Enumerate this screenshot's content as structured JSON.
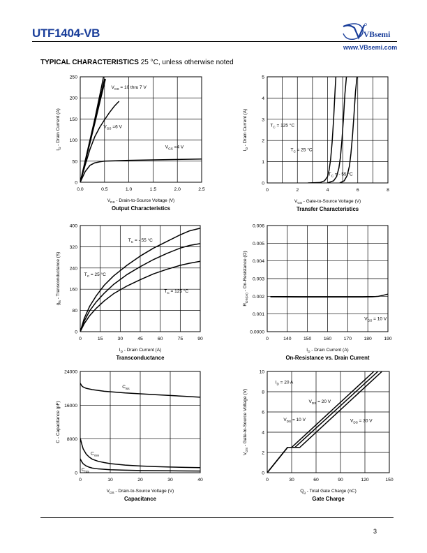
{
  "header": {
    "part_number": "UTF1404-VB",
    "brand": "VBsemi",
    "website": "www.VBsemi.com"
  },
  "section": {
    "title_bold": "TYPICAL CHARACTERISTICS",
    "title_rest": " 25 °C, unless otherwise noted"
  },
  "footer": {
    "page_number": "3"
  },
  "colors": {
    "brand": "#1a3e9a",
    "line": "#000000",
    "grid": "#000000"
  },
  "chart_data": [
    {
      "id": "output",
      "type": "line",
      "title": "Output Characteristics",
      "xlabel": "V_DS - Drain-to-Source Voltage (V)",
      "ylabel": "I_D - Drain Current (A)",
      "xlim": [
        0,
        2.5
      ],
      "ylim": [
        0,
        250
      ],
      "xticks": [
        "0.0",
        "0.5",
        "1.0",
        "1.5",
        "2.0",
        "2.5"
      ],
      "yticks": [
        "0",
        "50",
        "100",
        "150",
        "200",
        "250"
      ],
      "xgrid": 5,
      "ygrid": 5,
      "series": [
        {
          "x": [
            0,
            0.1,
            0.2,
            0.3,
            0.4,
            0.48
          ],
          "y": [
            0,
            50,
            100,
            150,
            205,
            250
          ]
        },
        {
          "x": [
            0,
            0.1,
            0.2,
            0.3,
            0.4,
            0.5
          ],
          "y": [
            0,
            48,
            96,
            145,
            195,
            245
          ]
        },
        {
          "x": [
            0,
            0.1,
            0.2,
            0.3,
            0.4,
            0.52
          ],
          "y": [
            0,
            46,
            93,
            140,
            188,
            245
          ]
        },
        {
          "x": [
            0,
            0.1,
            0.2,
            0.3,
            0.4,
            0.5,
            0.6,
            0.7,
            0.8
          ],
          "y": [
            0,
            40,
            78,
            108,
            130,
            148,
            165,
            180,
            192
          ]
        },
        {
          "x": [
            0,
            0.1,
            0.2,
            0.3,
            0.4,
            0.5,
            1.0,
            1.5,
            2.0,
            2.5
          ],
          "y": [
            0,
            25,
            40,
            46,
            48.5,
            50,
            52,
            53,
            54,
            55
          ]
        }
      ],
      "annotations": [
        {
          "text": "V",
          "sub": "GS",
          "rest": " = 10 thru 7 V",
          "x": 0.64,
          "y": 222
        },
        {
          "text": "V",
          "sub": "GS",
          "rest": " =6 V",
          "x": 0.48,
          "y": 128
        },
        {
          "text": "V",
          "sub": "GS",
          "rest": " =4 V",
          "x": 1.75,
          "y": 80
        }
      ]
    },
    {
      "id": "transfer",
      "type": "line",
      "title": "Transfer Characteristics",
      "xlabel": "V_GS - Gate-to-Source Voltage (V)",
      "ylabel": "I_D - Drain Current (A)",
      "xlim": [
        0,
        8
      ],
      "ylim": [
        0,
        5
      ],
      "xticks": [
        "0",
        "2",
        "4",
        "6",
        "8"
      ],
      "yticks": [
        "0",
        "1",
        "2",
        "3",
        "4",
        "5"
      ],
      "xgrid": 8,
      "ygrid": 5,
      "series": [
        {
          "name": "T_C = 125 °C",
          "x": [
            2.7,
            3.5,
            3.8,
            4.0,
            4.1,
            4.2,
            4.3,
            4.4,
            4.5,
            4.55
          ],
          "y": [
            0,
            0.02,
            0.1,
            0.3,
            0.6,
            1.1,
            1.9,
            3.0,
            4.4,
            5
          ]
        },
        {
          "name": "T_C = 25 °C",
          "x": [
            4.0,
            4.4,
            4.6,
            4.75,
            4.85,
            4.95,
            5.05,
            5.15,
            5.25
          ],
          "y": [
            0,
            0.1,
            0.3,
            0.7,
            1.2,
            2.0,
            3.0,
            4.2,
            5
          ]
        },
        {
          "name": "T_C = - 55 °C",
          "x": [
            4.8,
            5.1,
            5.3,
            5.45,
            5.55,
            5.65,
            5.75,
            5.85,
            5.95
          ],
          "y": [
            0,
            0.1,
            0.35,
            0.8,
            1.4,
            2.2,
            3.2,
            4.3,
            5
          ]
        }
      ],
      "annotations": [
        {
          "text": "T",
          "sub": "C",
          "rest": " = 125 °C",
          "x": 0.2,
          "y": 2.65
        },
        {
          "text": "T",
          "sub": "C",
          "rest": " = 25 °C",
          "x": 1.55,
          "y": 1.5
        },
        {
          "text": "T",
          "sub": "C",
          "rest": " = - 55 °C",
          "x": 4.05,
          "y": 0.35
        }
      ]
    },
    {
      "id": "transconductance",
      "type": "line",
      "title": "Transconductance",
      "xlabel": "I_D - Drain Current (A)",
      "ylabel": "g_fs - Transconductance (S)",
      "xlim": [
        0,
        90
      ],
      "ylim": [
        0,
        400
      ],
      "xticks": [
        "0",
        "15",
        "30",
        "45",
        "60",
        "75",
        "90"
      ],
      "yticks": [
        "0",
        "80",
        "160",
        "240",
        "320",
        "400"
      ],
      "xgrid": 6,
      "ygrid": 5,
      "series": [
        {
          "name": "T_C = - 55 °C",
          "x": [
            0,
            3,
            7,
            12,
            18,
            25,
            35,
            45,
            55,
            65,
            75,
            82,
            90
          ],
          "y": [
            0,
            50,
            95,
            135,
            175,
            210,
            250,
            285,
            315,
            340,
            365,
            380,
            390
          ]
        },
        {
          "name": "T_C = 25 °C",
          "x": [
            0,
            3,
            7,
            12,
            18,
            25,
            35,
            45,
            55,
            65,
            75,
            82,
            90
          ],
          "y": [
            0,
            40,
            78,
            112,
            145,
            178,
            215,
            245,
            272,
            295,
            315,
            325,
            332
          ]
        },
        {
          "name": "T_C = 125 °C",
          "x": [
            0,
            3,
            7,
            12,
            18,
            25,
            35,
            45,
            55,
            65,
            75,
            82,
            90
          ],
          "y": [
            0,
            30,
            60,
            88,
            116,
            143,
            172,
            196,
            218,
            235,
            250,
            258,
            265
          ]
        }
      ],
      "annotations": [
        {
          "text": "T",
          "sub": "C",
          "rest": " = - 55 °C",
          "x": 36,
          "y": 340
        },
        {
          "text": "T",
          "sub": "C",
          "rest": " = 25 °C",
          "x": 3,
          "y": 210
        },
        {
          "text": "T",
          "sub": "C",
          "rest": " = 125 °C",
          "x": 63,
          "y": 148
        }
      ]
    },
    {
      "id": "onres",
      "type": "line",
      "title": "On-Resistance vs. Drain Current",
      "xlabel": "I_D - Drain Current (A)",
      "ylabel": "R_DS(on) - On-Resistance (Ω)",
      "xlim": [
        0,
        190
      ],
      "ylim": [
        0,
        0.006
      ],
      "xticks": [
        "0",
        "140",
        "150",
        "160",
        "170",
        "180",
        "190"
      ],
      "yticks": [
        "0.0000",
        "0.001",
        "0.002",
        "0.003",
        "0.004",
        "0.005",
        "0.006"
      ],
      "xgrid": 6,
      "ygrid": 6,
      "series": [
        {
          "x": [
            5,
            50,
            100,
            150,
            165,
            175,
            182,
            190
          ],
          "y": [
            0.00197,
            0.00196,
            0.00196,
            0.00196,
            0.00197,
            0.002,
            0.00205,
            0.00212
          ]
        }
      ],
      "annotations": [
        {
          "text": "V",
          "sub": "GS",
          "rest": " = 10 V",
          "x": 153,
          "y": 0.00065
        }
      ]
    },
    {
      "id": "capacitance",
      "type": "line",
      "title": "Capacitance",
      "xlabel": "V_DS - Drain-to-Source Voltage (V)",
      "ylabel": "C - Capacitance (pF)",
      "xlim": [
        0,
        40
      ],
      "ylim": [
        0,
        24000
      ],
      "xticks": [
        "0",
        "10",
        "20",
        "30",
        "40"
      ],
      "yticks": [
        "0",
        "8000",
        "16000",
        "24000"
      ],
      "xgrid": 4,
      "ygrid": 3,
      "series": [
        {
          "name": "C_iss",
          "x": [
            0,
            0.5,
            1,
            2,
            4,
            8,
            15,
            25,
            35,
            40
          ],
          "y": [
            21200,
            20600,
            20300,
            20000,
            19700,
            19300,
            18900,
            18500,
            18100,
            17900
          ]
        },
        {
          "name": "C_oss",
          "x": [
            0,
            0.5,
            1,
            2,
            3,
            4,
            6,
            8,
            10,
            15,
            20,
            25,
            30,
            35,
            40
          ],
          "y": [
            8200,
            6800,
            5600,
            4400,
            3700,
            3200,
            2700,
            2400,
            2150,
            1800,
            1600,
            1450,
            1350,
            1270,
            1200
          ]
        },
        {
          "name": "C_rss",
          "x": [
            0,
            0.5,
            1,
            2,
            3,
            4,
            6,
            8,
            10,
            15,
            20,
            30,
            40
          ],
          "y": [
            3300,
            2600,
            2100,
            1600,
            1300,
            1100,
            900,
            800,
            700,
            600,
            520,
            450,
            400
          ]
        }
      ],
      "annotations": [
        {
          "text": "C",
          "sub": "iss",
          "rest": "",
          "x": 14,
          "y": 20000
        },
        {
          "text": "C",
          "sub": "oss",
          "rest": "",
          "x": 3.5,
          "y": 4200
        },
        {
          "text": "C",
          "sub": "rss",
          "rest": "",
          "x": 0.4,
          "y": 400
        }
      ]
    },
    {
      "id": "gatecharge",
      "type": "line",
      "title": "Gate Charge",
      "xlabel": "Q_g - Total Gate Charge (nC)",
      "ylabel": "V_GS - Gate-to-Source Voltage (V)",
      "xlim": [
        0,
        150
      ],
      "ylim": [
        0,
        10
      ],
      "xticks": [
        "0",
        "30",
        "60",
        "90",
        "120",
        "150"
      ],
      "yticks": [
        "0",
        "2",
        "4",
        "6",
        "8",
        "10"
      ],
      "xgrid": 5,
      "ygrid": 5,
      "series": [
        {
          "name": "V_DS = 10 V",
          "x": [
            0,
            25,
            30,
            131
          ],
          "y": [
            0,
            2.5,
            2.5,
            10
          ]
        },
        {
          "name": "V_DS = 20 V",
          "x": [
            0,
            25,
            34,
            136
          ],
          "y": [
            0,
            2.5,
            2.5,
            10
          ]
        },
        {
          "name": "V_DS = 30 V",
          "x": [
            0,
            25,
            40,
            141
          ],
          "y": [
            0,
            2.5,
            2.5,
            10
          ]
        }
      ],
      "annotations": [
        {
          "text": "I",
          "sub": "D",
          "rest": " = 20 A",
          "x": 10,
          "y": 8.8
        },
        {
          "text": "V",
          "sub": "DS",
          "rest": " = 20 V",
          "x": 51,
          "y": 6.9
        },
        {
          "text": "V",
          "sub": "DS",
          "rest": " = 10 V",
          "x": 20,
          "y": 5.1
        },
        {
          "text": "V",
          "sub": "DS",
          "rest": " = 30 V",
          "x": 102,
          "y": 5.0
        }
      ]
    }
  ]
}
